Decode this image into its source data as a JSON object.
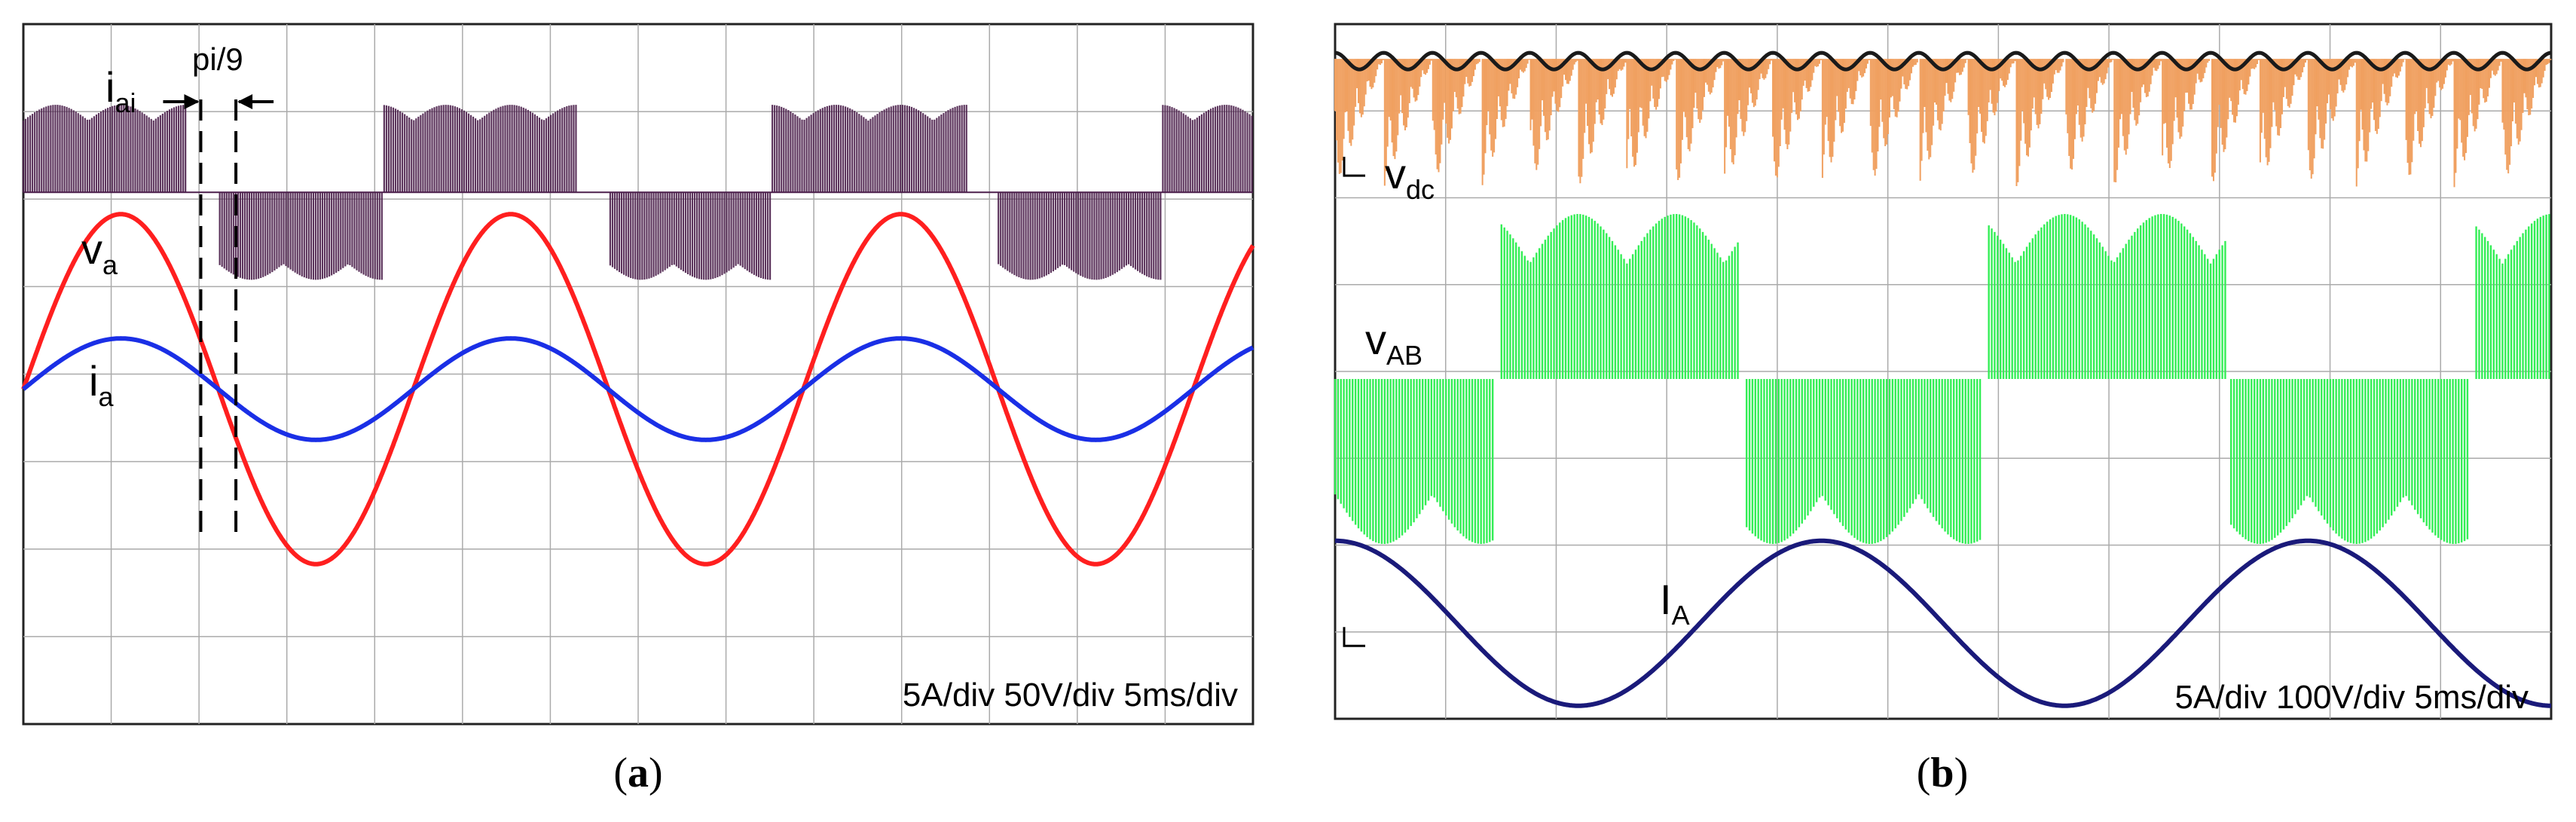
{
  "figure": {
    "panel_a_caption": {
      "open": "(",
      "letter": "a",
      "close": ")"
    },
    "panel_b_caption": {
      "open": "(",
      "letter": "b",
      "close": ")"
    }
  },
  "chart_data": [
    {
      "type": "line",
      "title": "(a)",
      "scale_text": "5A/div 50V/div 5ms/div",
      "x_unit": "ms",
      "xlim": [
        0,
        70
      ],
      "ylim": [
        -5,
        5
      ],
      "grid": true,
      "annotation": {
        "text": "pi/9",
        "marker_times_ms": [
          10.1,
          12.1
        ]
      },
      "series": [
        {
          "name": "i_ai",
          "label": {
            "main": "i",
            "sub": "ai"
          },
          "style": "pwm-current",
          "color": "#4b1f4b",
          "baseline_div": 3.0,
          "amplitude_div": 1.0,
          "fundamental_period_ms": 22.2,
          "phase_offset_ms": 0
        },
        {
          "name": "v_a",
          "label": {
            "main": "v",
            "sub": "a"
          },
          "style": "sine",
          "color": "#ff1f1f",
          "peak_value_div": 2.0,
          "period_ms": 22.2,
          "phase_offset_ms": 0
        },
        {
          "name": "i_a",
          "label": {
            "main": "i",
            "sub": "a"
          },
          "style": "sine",
          "color": "#1a2fe6",
          "peak_value_div": 0.58,
          "period_ms": 22.2,
          "phase_offset_ms": 0
        }
      ]
    },
    {
      "type": "line",
      "title": "(b)",
      "scale_text": "5A/div 100V/div 5ms/div",
      "x_unit": "ms",
      "xlim": [
        0,
        50
      ],
      "ylim": [
        -4,
        4
      ],
      "grid": true,
      "series": [
        {
          "name": "v_dc",
          "label": {
            "main": "v",
            "sub": "dc"
          },
          "style": "ripple-dc",
          "color": "#f0a060",
          "envelope_color": "#1a1a1a",
          "level_div": 3.6,
          "ripple_period_ms": 2.0
        },
        {
          "name": "v_AB",
          "label": {
            "main": "v",
            "sub": "AB"
          },
          "style": "pwm-voltage",
          "color": "#33ee55",
          "baseline_div": 0.0,
          "amplitude_div": 1.9,
          "fundamental_period_ms": 20.0
        },
        {
          "name": "I_A",
          "label": {
            "main": "I",
            "sub": "A"
          },
          "style": "sine",
          "color": "#1a1a7a",
          "center_div": -2.9,
          "peak_value_div": 0.95,
          "period_ms": 20.0,
          "phase_offset_ms": 0
        }
      ]
    }
  ]
}
